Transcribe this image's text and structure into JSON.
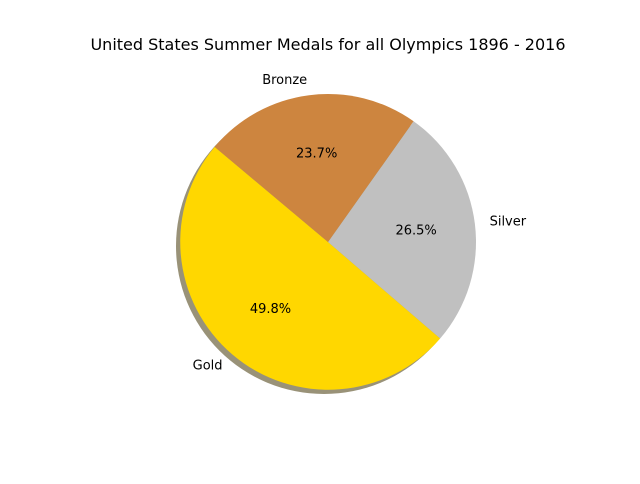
{
  "chart_data": {
    "type": "pie",
    "title": "United States Summer Medals for all Olympics 1896 - 2016",
    "slices": [
      {
        "label": "Gold",
        "value": 49.8,
        "pct_text": "49.8%",
        "color": "#FFD700"
      },
      {
        "label": "Silver",
        "value": 26.5,
        "pct_text": "26.5%",
        "color": "#C0C0C0"
      },
      {
        "label": "Bronze",
        "value": 23.7,
        "pct_text": "23.7%",
        "color": "#CD853F"
      }
    ],
    "start_angle_deg": 140,
    "direction": "counterclockwise",
    "shadow": true,
    "shadow_color": "#999278",
    "legend": "none"
  }
}
